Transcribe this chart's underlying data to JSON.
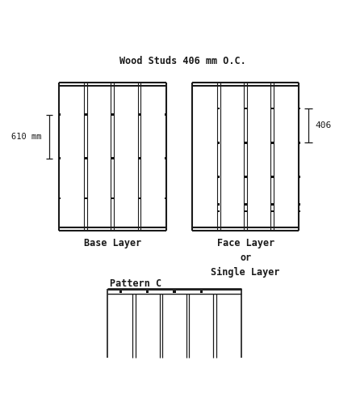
{
  "title": "Wood Studs 406 mm O.C.",
  "title_fontsize": 8.5,
  "bg_color": "#ffffff",
  "line_color": "#1a1a1a",
  "label_base": "Base Layer",
  "label_face": "Face Layer\nor\nSingle Layer",
  "label_pattern": "Pattern C",
  "dim_left_label": "610 mm",
  "dim_right_label": "406",
  "panel_lw": 1.5,
  "stud_lw": 0.8,
  "plate_lw": 1.5
}
